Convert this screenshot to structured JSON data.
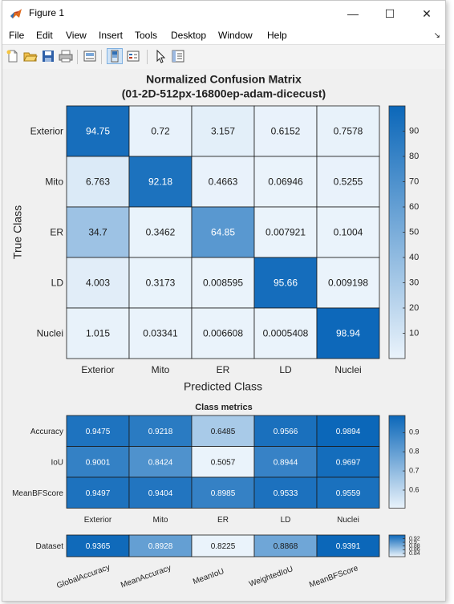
{
  "window": {
    "title": "Figure 1",
    "minimize": "—",
    "maximize": "☐",
    "close": "✕"
  },
  "menu": [
    "File",
    "Edit",
    "View",
    "Insert",
    "Tools",
    "Desktop",
    "Window",
    "Help"
  ],
  "menu_corner": "↘",
  "toolbar": [
    "new-figure-icon",
    "open-icon",
    "save-icon",
    "print-icon",
    "link-plot-icon",
    "colorbar-icon",
    "legend-icon",
    "pointer-icon",
    "property-inspector-icon"
  ],
  "chart_data": [
    {
      "type": "heatmap",
      "title": "Normalized Confusion Matrix",
      "subtitle": "(01-2D-512px-16800ep-adam-dicecust)",
      "xlabel": "Predicted Class",
      "ylabel": "True Class",
      "columns": [
        "Exterior",
        "Mito",
        "ER",
        "LD",
        "Nuclei"
      ],
      "rows": [
        "Exterior",
        "Mito",
        "ER",
        "LD",
        "Nuclei"
      ],
      "values": [
        [
          "94.75",
          "0.72",
          "3.157",
          "0.6152",
          "0.7578"
        ],
        [
          "6.763",
          "92.18",
          "0.4663",
          "0.06946",
          "0.5255"
        ],
        [
          "34.7",
          "0.3462",
          "64.85",
          "0.007921",
          "0.1004"
        ],
        [
          "4.003",
          "0.3173",
          "0.008595",
          "95.66",
          "0.009198"
        ],
        [
          "1.015",
          "0.03341",
          "0.006608",
          "0.0005408",
          "98.94"
        ]
      ],
      "colorbar_ticks": [
        "10",
        "20",
        "30",
        "40",
        "50",
        "60",
        "70",
        "80",
        "90"
      ],
      "colorbar_range": [
        0,
        100
      ],
      "colormap": [
        "#eaf3fb",
        "#0b67b9"
      ]
    },
    {
      "type": "heatmap",
      "title": "Class metrics",
      "columns": [
        "Exterior",
        "Mito",
        "ER",
        "LD",
        "Nuclei"
      ],
      "rows": [
        "Accuracy",
        "IoU",
        "MeanBFScore"
      ],
      "values": [
        [
          "0.9475",
          "0.9218",
          "0.6485",
          "0.9566",
          "0.9894"
        ],
        [
          "0.9001",
          "0.8424",
          "0.5057",
          "0.8944",
          "0.9697"
        ],
        [
          "0.9497",
          "0.9404",
          "0.8985",
          "0.9533",
          "0.9559"
        ]
      ],
      "colorbar_ticks": [
        "0.6",
        "0.7",
        "0.8",
        "0.9"
      ],
      "colorbar_range": [
        0.5057,
        0.9894
      ],
      "colormap": [
        "#eaf3fb",
        "#0b67b9"
      ]
    },
    {
      "type": "heatmap",
      "rows": [
        "Dataset"
      ],
      "columns": [
        "GlobalAccuracy",
        "MeanAccuracy",
        "MeanIoU",
        "WeightedIoU",
        "MeanBFScore"
      ],
      "values": [
        [
          "0.9365",
          "0.8928",
          "0.8225",
          "0.8868",
          "0.9391"
        ]
      ],
      "colorbar_ticks": [
        "0.84",
        "0.86",
        "0.88",
        "0.9",
        "0.92"
      ],
      "colorbar_range": [
        0.8225,
        0.9391
      ],
      "colormap": [
        "#eaf3fb",
        "#0b67b9"
      ]
    }
  ]
}
